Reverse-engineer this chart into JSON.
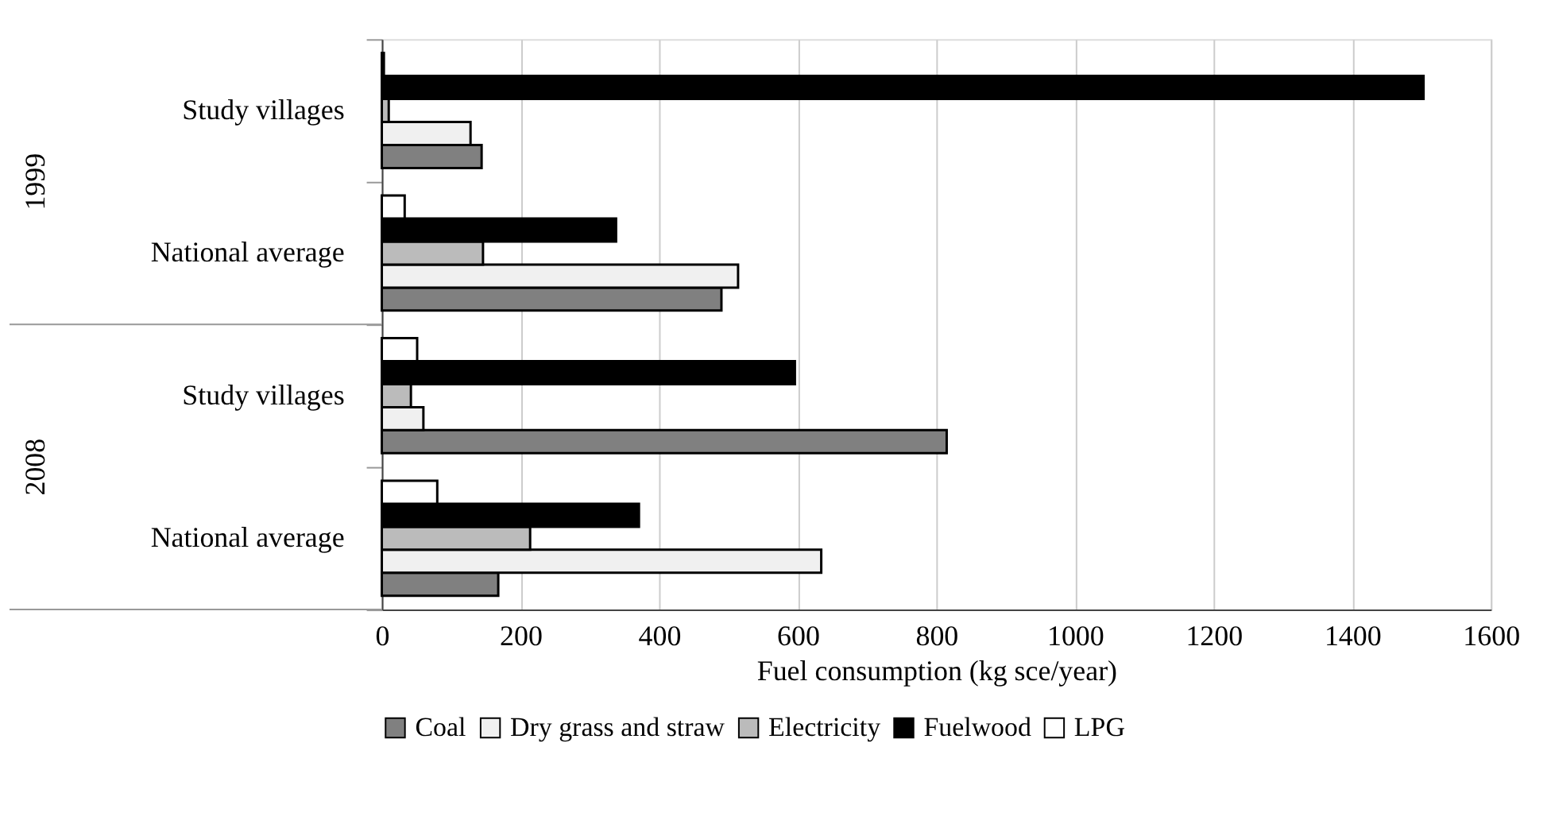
{
  "chart_data": {
    "type": "bar",
    "orientation": "horizontal",
    "xlabel": "Fuel consumption (kg sce/year)",
    "categories": [
      "Study villages",
      "National average",
      "Study villages",
      "National average"
    ],
    "series": [
      {
        "name": "Coal",
        "color": "#808080",
        "values": [
          144,
          490,
          815,
          168
        ]
      },
      {
        "name": "Dry grass and straw",
        "color": "#f0f0f0",
        "values": [
          128,
          514,
          60,
          634
        ]
      },
      {
        "name": "Electricity",
        "color": "#bbbbbb",
        "values": [
          10,
          146,
          42,
          214
        ]
      },
      {
        "name": "Fuelwood",
        "color": "#000000",
        "values": [
          1503,
          338,
          596,
          371
        ]
      },
      {
        "name": "LPG",
        "color": "#ffffff",
        "values": [
          3,
          33,
          51,
          80
        ]
      }
    ],
    "xlim": [
      0,
      1600
    ],
    "xticks": [
      0,
      200,
      400,
      600,
      800,
      1000,
      1200,
      1400,
      1600
    ],
    "grid": "x",
    "legend": "bottom",
    "annotations": [
      "1999",
      "2008"
    ]
  }
}
